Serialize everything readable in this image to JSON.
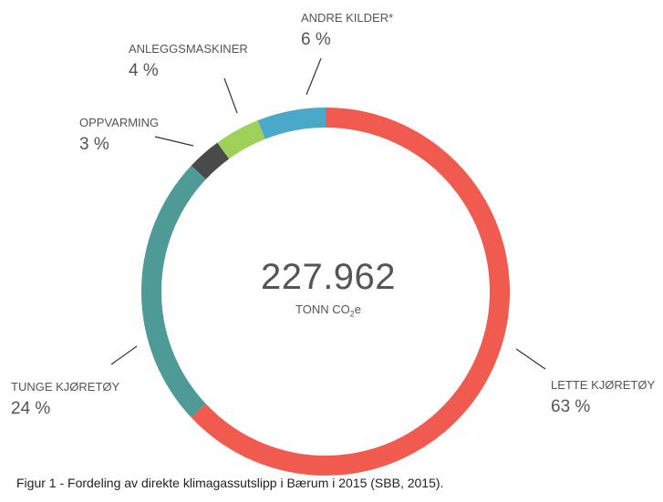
{
  "chart_data": {
    "type": "pie",
    "subtype": "donut",
    "center": {
      "value": "227.962",
      "unit_prefix": "TONN CO",
      "unit_sub": "2",
      "unit_suffix": "e"
    },
    "slices": [
      {
        "label": "LETTE KJØRETØY",
        "percent_label": "63 %",
        "value": 63,
        "color": "#f05a4f"
      },
      {
        "label": "TUNGE KJØRETØY",
        "percent_label": "24 %",
        "value": 24,
        "color": "#4e9a97"
      },
      {
        "label": "OPPVARMING",
        "percent_label": "3 %",
        "value": 3,
        "color": "#4a4a4a"
      },
      {
        "label": "ANLEGGSMASKINER",
        "percent_label": "4 %",
        "value": 4,
        "color": "#9fd05a"
      },
      {
        "label": "ANDRE KILDER*",
        "percent_label": "6 %",
        "value": 6,
        "color": "#4aa9c9"
      }
    ]
  },
  "caption": "Figur 1 - Fordeling av direkte klimagassutslipp i Bærum i 2015 (SBB, 2015)."
}
